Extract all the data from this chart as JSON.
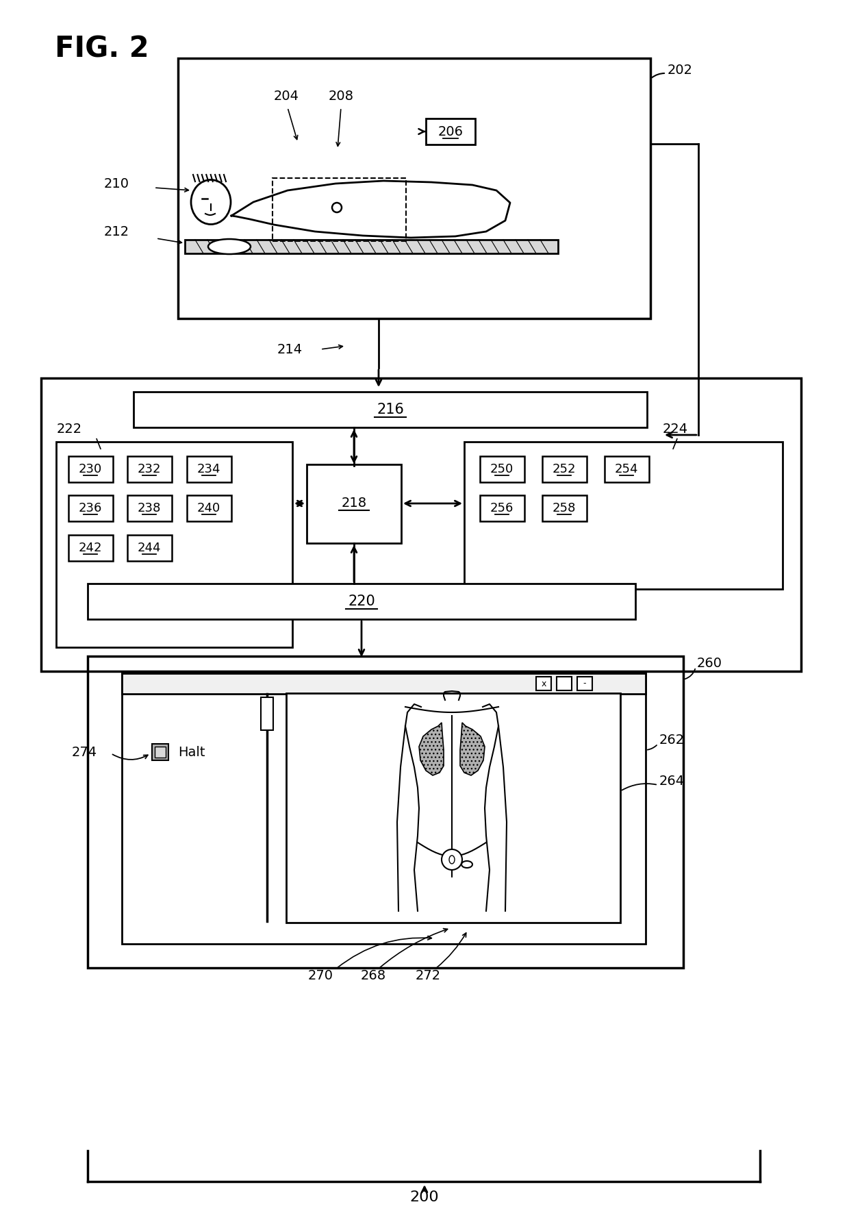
{
  "fig_label": "FIG. 2",
  "bg_color": "#ffffff",
  "line_color": "#000000",
  "label_color": "#000000",
  "labels": {
    "fig": "FIG. 2",
    "202": "202",
    "204": "204",
    "206": "206",
    "208": "208",
    "210": "210",
    "212": "212",
    "214": "214",
    "216": "216",
    "218": "218",
    "220": "220",
    "222": "222",
    "224": "224",
    "230": "230",
    "232": "232",
    "234": "234",
    "236": "236",
    "238": "238",
    "240": "240",
    "242": "242",
    "244": "244",
    "250": "250",
    "252": "252",
    "254": "254",
    "256": "256",
    "258": "258",
    "260": "260",
    "262": "262",
    "264": "264",
    "268": "268",
    "270": "270",
    "272": "272",
    "274": "274",
    "200": "200",
    "halt": "Halt"
  }
}
